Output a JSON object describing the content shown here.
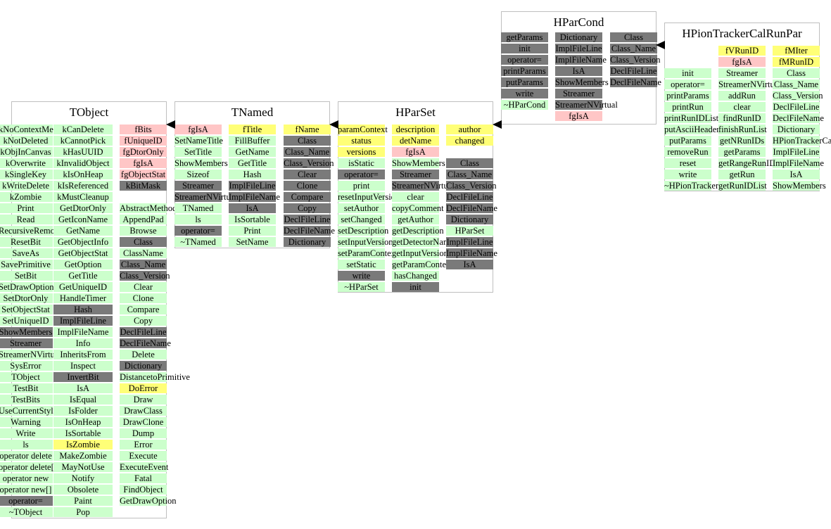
{
  "classes": [
    {
      "name": "TObject",
      "columns": [
        [
          "kNoContextMenu",
          "kNotDeleted",
          "kObjInCanvas",
          "kOverwrite",
          "kSingleKey",
          "kWriteDelete",
          "kZombie",
          "Print",
          "Read",
          "RecursiveRemove",
          "ResetBit",
          "SaveAs",
          "SavePrimitive",
          "SetBit",
          "SetDrawOption",
          "SetDtorOnly",
          "SetObjectStat",
          "SetUniqueID",
          "ShowMembers",
          "Streamer",
          "StreamerNVirtual",
          "SysError",
          "TObject",
          "TestBit",
          "TestBits",
          "UseCurrentStyle",
          "Warning",
          "Write",
          "ls",
          "operator delete",
          "operator delete[]",
          "operator new",
          "operator new[]",
          "operator=",
          "~TObject"
        ],
        [
          "kCanDelete",
          "kCannotPick",
          "kHasUUID",
          "kInvalidObject",
          "kIsOnHeap",
          "kIsReferenced",
          "kMustCleanup",
          "GetDtorOnly",
          "GetIconName",
          "GetName",
          "GetObjectInfo",
          "GetObjectStat",
          "GetOption",
          "GetTitle",
          "GetUniqueID",
          "HandleTimer",
          "Hash",
          "ImplFileLine",
          "ImplFileName",
          "Info",
          "InheritsFrom",
          "Inspect",
          "InvertBit",
          "IsA",
          "IsEqual",
          "IsFolder",
          "IsOnHeap",
          "IsSortable",
          "IsZombie",
          "MakeZombie",
          "MayNotUse",
          "Notify",
          "Obsolete",
          "Paint",
          "Pop"
        ],
        [
          "fBits",
          "fUniqueID",
          "fgDtorOnly",
          "fgIsA",
          "fgObjectStat",
          "kBitMask",
          "",
          "AbstractMethod",
          "AppendPad",
          "Browse",
          "Class",
          "ClassName",
          "Class_Name",
          "Class_Version",
          "Clear",
          "Clone",
          "Compare",
          "Copy",
          "DeclFileLine",
          "DeclFileName",
          "Delete",
          "Dictionary",
          "DistancetoPrimitive",
          "DoError",
          "Draw",
          "DrawClass",
          "DrawClone",
          "Dump",
          "Error",
          "Execute",
          "ExecuteEvent",
          "Fatal",
          "FindObject",
          "GetDrawOption"
        ]
      ]
    },
    {
      "name": "TNamed",
      "columns": [
        [
          "fgIsA",
          "SetNameTitle",
          "SetTitle",
          "ShowMembers",
          "Sizeof",
          "Streamer",
          "StreamerNVirtual",
          "TNamed",
          "ls",
          "operator=",
          "~TNamed"
        ],
        [
          "fTitle",
          "FillBuffer",
          "GetName",
          "GetTitle",
          "Hash",
          "ImplFileLine",
          "ImplFileName",
          "IsA",
          "IsSortable",
          "Print",
          "SetName"
        ],
        [
          "fName",
          "Class",
          "Class_Name",
          "Class_Version",
          "Clear",
          "Clone",
          "Compare",
          "Copy",
          "DeclFileLine",
          "DeclFileName",
          "Dictionary"
        ]
      ]
    },
    {
      "name": "HParSet",
      "columns": [
        [
          "paramContext",
          "status",
          "versions",
          "isStatic",
          "operator=",
          "print",
          "resetInputVersions",
          "setAuthor",
          "setChanged",
          "setDescription",
          "setInputVersion",
          "setParamContext",
          "setStatic",
          "write",
          "~HParSet"
        ],
        [
          "description",
          "detName",
          "fgIsA",
          "ShowMembers",
          "Streamer",
          "StreamerNVirtual",
          "clear",
          "copyComment",
          "getAuthor",
          "getDescription",
          "getDetectorName",
          "getInputVersion",
          "getParamContext",
          "hasChanged",
          "init"
        ],
        [
          "author",
          "changed",
          "",
          "Class",
          "Class_Name",
          "Class_Version",
          "DeclFileLine",
          "DeclFileName",
          "Dictionary",
          "HParSet",
          "ImplFileLine",
          "ImplFileName",
          "IsA"
        ]
      ]
    },
    {
      "name": "HParCond",
      "columns": [
        [
          "getParams",
          "init",
          "operator=",
          "printParams",
          "putParams",
          "write",
          "~HParCond"
        ],
        [
          "Dictionary",
          "ImplFileLine",
          "ImplFileName",
          "IsA",
          "ShowMembers",
          "Streamer",
          "StreamerNVirtual",
          "fgIsA"
        ],
        [
          "Class",
          "Class_Name",
          "Class_Version",
          "DeclFileLine",
          "DeclFileName"
        ]
      ]
    },
    {
      "name": "HPionTrackerCalRunPar",
      "columns": [
        [
          "init",
          "operator=",
          "printParams",
          "printRun",
          "printRunIDList",
          "putAsciiHeader",
          "putParams",
          "removeRun",
          "reset",
          "write",
          "~HPionTrackerCalRunPar"
        ],
        [
          "fVRunID",
          "fgIsA",
          "Streamer",
          "StreamerNVirtual",
          "addRun",
          "clear",
          "findRunID",
          "finishRunList",
          "getNRunIDs",
          "getParams",
          "getRangeRunID",
          "getRun",
          "getRunIDList"
        ],
        [
          "fMIter",
          "fMRunID",
          "Class",
          "Class_Name",
          "Class_Version",
          "DeclFileLine",
          "DeclFileName",
          "Dictionary",
          "HPionTrackerCalRunPar",
          "ImplFileLine",
          "ImplFileName",
          "IsA",
          "ShowMembers"
        ]
      ]
    }
  ],
  "colors": {
    "method": "#ccffcc",
    "inherited": "#7a7a7a",
    "member": "#ffff77",
    "static_member": "#ffc6c6"
  }
}
